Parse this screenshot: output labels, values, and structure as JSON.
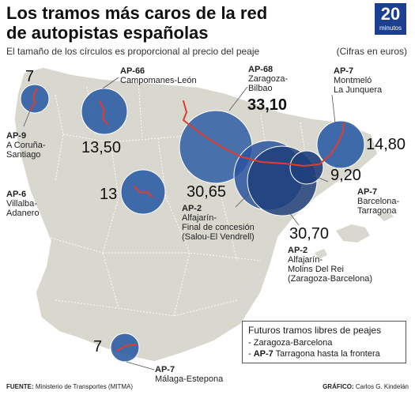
{
  "header": {
    "title_line1": "Los tramos más caros de la red",
    "title_line2": "de autopistas españolas",
    "subtitle": "El tamaño de los círculos es proporcional al precio del peaje",
    "units_note": "(Cifras en euros)",
    "logo_number": "20",
    "logo_word": "minutos"
  },
  "segments": [
    {
      "id": "ap9",
      "code": "AP-9",
      "name_lines": [
        "A Coruña-",
        "Santiago"
      ],
      "value": "7"
    },
    {
      "id": "ap66",
      "code": "AP-66",
      "name_lines": [
        "Campomanes-León"
      ],
      "value": "13,50"
    },
    {
      "id": "ap6",
      "code": "AP-6",
      "name_lines": [
        "Villalba-",
        "Adanero"
      ],
      "value": "13"
    },
    {
      "id": "ap68",
      "code": "AP-68",
      "name_lines": [
        "Zaragoza-",
        "Bilbao"
      ],
      "value": "33,10"
    },
    {
      "id": "ap7-mont",
      "code": "AP-7",
      "name_lines": [
        "Montmeló",
        "La Junquera"
      ],
      "value": "14,80"
    },
    {
      "id": "ap7-bcn",
      "code": "AP-7",
      "name_lines": [
        "Barcelona-",
        "Tarragona"
      ],
      "value": "9,20"
    },
    {
      "id": "ap2-salou",
      "code": "AP-2",
      "name_lines": [
        "Alfajarín-",
        "Final de concesión",
        "(Salou-El Vendrell)"
      ],
      "value": "30,65"
    },
    {
      "id": "ap2-molins",
      "code": "AP-2",
      "name_lines": [
        "Alfajarín-",
        "Molins Del Rei",
        "(Zaragoza-Barcelona)"
      ],
      "value": "30,70"
    },
    {
      "id": "ap7-mal",
      "code": "AP-7",
      "name_lines": [
        "Málaga-Estepona"
      ],
      "value": "7"
    }
  ],
  "legend": {
    "title": "Futuros tramos libres de peajes",
    "item1": "- Zaragoza-Barcelona",
    "item2_prefix": "- ",
    "item2_code": "AP-7",
    "item2_rest": " Tarragona hasta la frontera"
  },
  "footer": {
    "source_label": "FUENTE:",
    "source": " Ministerio de Transportes (MITMA)",
    "graphic_label": "GRÁFICO:",
    "graphic": " Carlos G. Kindelán"
  },
  "colors": {
    "land": "#d9d8cf",
    "sea": "#ffffff",
    "circle_fill": "#2e5ea5",
    "circle_dark": "#1e3f7a",
    "route": "#e23b2e",
    "logo_bg": "#1c3f8f"
  }
}
